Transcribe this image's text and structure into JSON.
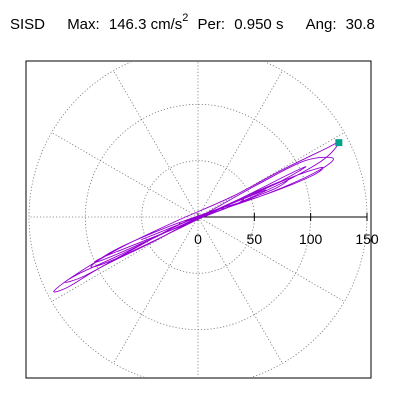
{
  "header": {
    "station": "SISD",
    "max_label": "Max:",
    "max_value": "146.3 cm/s",
    "max_unit_power": "2",
    "per_label": "Per:",
    "per_value": "0.950 s",
    "ang_label": "Ang:",
    "ang_value": "30.8"
  },
  "chart_data": {
    "type": "scatter",
    "subtype": "polar-orbit",
    "radial_range": [
      0,
      150
    ],
    "rings": [
      50,
      100,
      150
    ],
    "spokes_deg": [
      0,
      30,
      60,
      90,
      120,
      150,
      180,
      210,
      240,
      270,
      300,
      330
    ],
    "tick_values": [
      0,
      50,
      100,
      150
    ],
    "tick_labels": [
      "0",
      "50",
      "100",
      "150"
    ],
    "grid": true,
    "orbit_color": "#9400d3",
    "marker_color": "#00a08a",
    "peak_point": {
      "x": 125,
      "y": 66
    },
    "orbit_angle_deg": 30.8,
    "orbit": [
      [
        0,
        0
      ],
      [
        20,
        6
      ],
      [
        70,
        28
      ],
      [
        110,
        50
      ],
      [
        125,
        66
      ],
      [
        112,
        60
      ],
      [
        75,
        42
      ],
      [
        30,
        18
      ],
      [
        -20,
        -4
      ],
      [
        -70,
        -28
      ],
      [
        -110,
        -52
      ],
      [
        -128,
        -66
      ],
      [
        -115,
        -62
      ],
      [
        -85,
        -44
      ],
      [
        -40,
        -22
      ],
      [
        5,
        2
      ],
      [
        55,
        30
      ],
      [
        95,
        50
      ],
      [
        120,
        52
      ],
      [
        105,
        40
      ],
      [
        65,
        22
      ],
      [
        20,
        6
      ],
      [
        -25,
        -12
      ],
      [
        -70,
        -34
      ],
      [
        -105,
        -50
      ],
      [
        -118,
        -58
      ],
      [
        -100,
        -52
      ],
      [
        -60,
        -30
      ],
      [
        -15,
        -6
      ],
      [
        35,
        14
      ],
      [
        80,
        34
      ],
      [
        110,
        44
      ],
      [
        100,
        36
      ],
      [
        60,
        20
      ],
      [
        15,
        6
      ],
      [
        -30,
        -10
      ],
      [
        -75,
        -30
      ],
      [
        -95,
        -44
      ],
      [
        -80,
        -40
      ],
      [
        -45,
        -24
      ],
      [
        0,
        -2
      ],
      [
        45,
        20
      ],
      [
        85,
        40
      ],
      [
        95,
        44
      ],
      [
        70,
        30
      ],
      [
        30,
        12
      ],
      [
        -10,
        -6
      ],
      [
        -50,
        -22
      ],
      [
        -85,
        -36
      ],
      [
        -90,
        -40
      ],
      [
        -65,
        -30
      ],
      [
        -25,
        -12
      ],
      [
        15,
        6
      ],
      [
        55,
        24
      ],
      [
        80,
        34
      ],
      [
        70,
        26
      ],
      [
        40,
        14
      ],
      [
        5,
        0
      ],
      [
        -35,
        -16
      ],
      [
        -65,
        -28
      ],
      [
        -70,
        -30
      ],
      [
        -50,
        -22
      ],
      [
        -15,
        -8
      ],
      [
        20,
        8
      ],
      [
        50,
        20
      ],
      [
        60,
        24
      ],
      [
        45,
        18
      ],
      [
        15,
        6
      ],
      [
        -15,
        -6
      ],
      [
        -40,
        -16
      ],
      [
        -50,
        -20
      ],
      [
        -35,
        -14
      ],
      [
        -10,
        -4
      ],
      [
        15,
        4
      ],
      [
        35,
        12
      ],
      [
        40,
        16
      ],
      [
        25,
        10
      ],
      [
        5,
        2
      ],
      [
        -15,
        -6
      ],
      [
        -30,
        -12
      ],
      [
        -25,
        -10
      ],
      [
        -10,
        -4
      ],
      [
        8,
        2
      ],
      [
        20,
        6
      ],
      [
        22,
        8
      ],
      [
        12,
        4
      ],
      [
        -2,
        -1
      ],
      [
        -14,
        -4
      ],
      [
        -16,
        -6
      ],
      [
        -8,
        -3
      ],
      [
        4,
        1
      ],
      [
        12,
        4
      ],
      [
        10,
        3
      ],
      [
        2,
        0
      ]
    ]
  }
}
